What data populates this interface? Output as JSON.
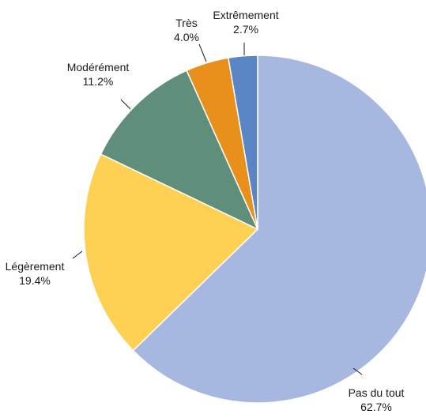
{
  "chart_data": {
    "type": "pie",
    "title": "",
    "start_angle_deg": 0,
    "direction": "clockwise",
    "legend": "none",
    "slices": [
      {
        "label": "Pas du tout",
        "value": 62.7,
        "value_text": "62.7%",
        "color": "#a6b8e0"
      },
      {
        "label": "Légèrement",
        "value": 19.4,
        "value_text": "19.4%",
        "color": "#fed155"
      },
      {
        "label": "Modérément",
        "value": 11.2,
        "value_text": "11.2%",
        "color": "#5f8f7a"
      },
      {
        "label": "Très",
        "value": 4.0,
        "value_text": "4.0%",
        "color": "#e8901b"
      },
      {
        "label": "Extrêmement",
        "value": 2.7,
        "value_text": "2.7%",
        "color": "#5a86c6"
      }
    ]
  }
}
